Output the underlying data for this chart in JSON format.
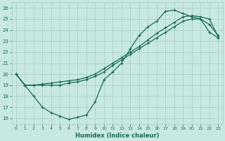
{
  "xlabel": "Humidex (Indice chaleur)",
  "bg_color": "#c8e8e4",
  "line_color": "#1a6b5a",
  "grid_color": "#a8ccc8",
  "xlim": [
    -0.5,
    23.5
  ],
  "ylim": [
    15.5,
    26.5
  ],
  "xticks": [
    0,
    1,
    2,
    3,
    4,
    5,
    6,
    7,
    8,
    9,
    10,
    11,
    12,
    13,
    14,
    15,
    16,
    17,
    18,
    19,
    20,
    21,
    22,
    23
  ],
  "yticks": [
    16,
    17,
    18,
    19,
    20,
    21,
    22,
    23,
    24,
    25,
    26
  ],
  "line1_x": [
    0,
    1,
    2,
    3,
    4,
    5,
    6,
    7,
    8,
    9,
    10,
    11,
    12,
    13,
    14,
    15,
    16,
    17,
    18,
    19,
    20,
    21,
    22,
    23
  ],
  "line1_y": [
    20,
    19,
    19,
    19,
    19,
    19,
    19.2,
    19.3,
    19.5,
    19.8,
    20.2,
    20.8,
    21.3,
    21.8,
    22.3,
    22.8,
    23.3,
    23.8,
    24.3,
    24.8,
    25.0,
    25.0,
    24.5,
    23.5
  ],
  "line2_x": [
    0,
    1,
    2,
    3,
    4,
    5,
    6,
    7,
    8,
    9,
    10,
    11,
    12,
    13,
    14,
    15,
    16,
    17,
    18,
    19,
    20,
    21,
    22,
    23
  ],
  "line2_y": [
    20,
    19,
    18,
    17,
    16.5,
    16.2,
    15.9,
    16.1,
    16.3,
    17.5,
    19.5,
    20.2,
    21.0,
    22.3,
    23.5,
    24.3,
    24.8,
    25.7,
    25.8,
    25.5,
    25.2,
    25.0,
    23.8,
    23.3
  ],
  "line3_x": [
    0,
    1,
    2,
    3,
    4,
    5,
    6,
    7,
    8,
    9,
    10,
    11,
    12,
    13,
    14,
    15,
    16,
    17,
    18,
    19,
    20,
    21,
    22,
    23
  ],
  "line3_y": [
    20,
    19,
    19,
    19.1,
    19.2,
    19.3,
    19.4,
    19.5,
    19.7,
    20.0,
    20.5,
    21.0,
    21.5,
    22.0,
    22.5,
    23.1,
    23.7,
    24.2,
    24.7,
    25.2,
    25.3,
    25.2,
    25.0,
    23.4
  ]
}
